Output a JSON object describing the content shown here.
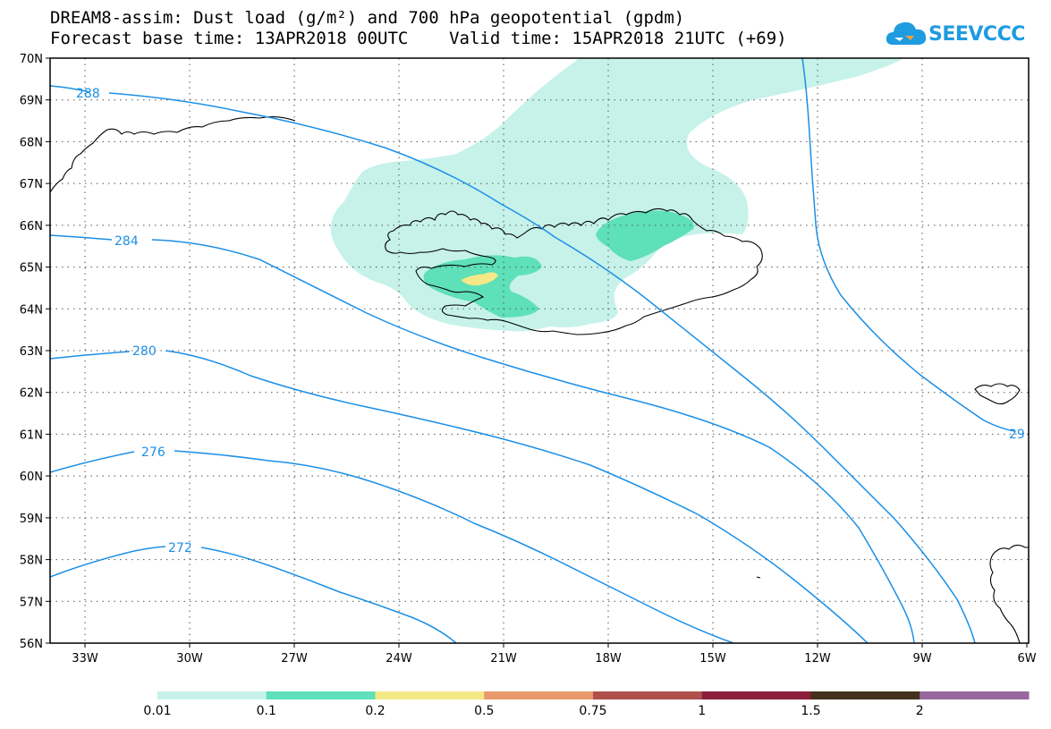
{
  "title_line1": "DREAM8-assim: Dust load (g/m²) and 700 hPa geopotential (gpdm)",
  "title_line2": "Forecast base time: 13APR2018 00UTC    Valid time: 15APR2018 21UTC (+69)",
  "logo_text": "SEEVCCC",
  "lat_labels": [
    "70N",
    "69N",
    "68N",
    "67N",
    "66N",
    "65N",
    "64N",
    "63N",
    "62N",
    "61N",
    "60N",
    "59N",
    "58N",
    "57N",
    "56N"
  ],
  "lon_labels": [
    "33W",
    "30W",
    "27W",
    "24W",
    "21W",
    "18W",
    "15W",
    "12W",
    "9W",
    "6W"
  ],
  "contour_labels": [
    "288",
    "284",
    "280",
    "276",
    "272",
    "29"
  ],
  "colorbar": {
    "labels": [
      "0.01",
      "0.1",
      "0.2",
      "0.5",
      "0.75",
      "1",
      "1.5",
      "2"
    ],
    "colors": [
      "#c6f2ea",
      "#5ee0b9",
      "#f4e986",
      "#e89a6c",
      "#b0504c",
      "#8c1f3c",
      "#43311c",
      "#97689e"
    ]
  }
}
